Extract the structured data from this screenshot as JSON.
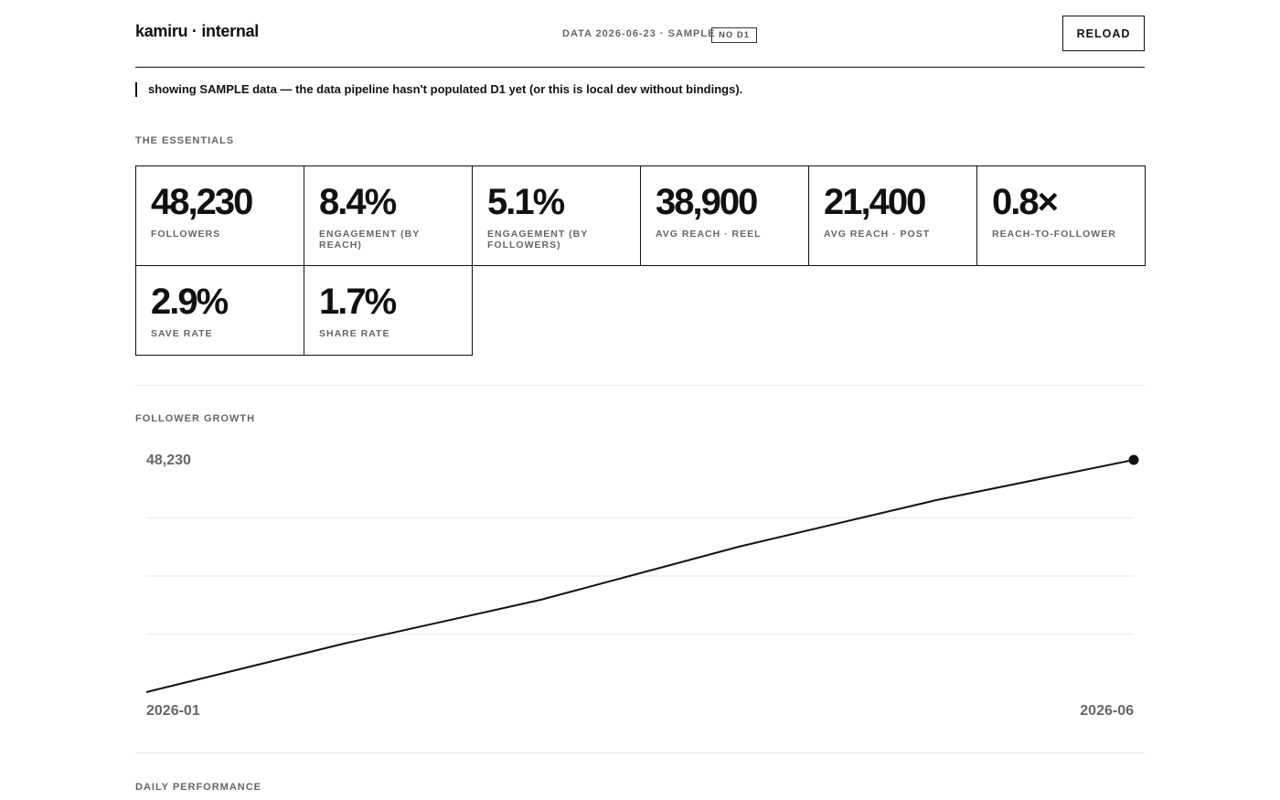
{
  "header": {
    "title": "kamiru · internal",
    "status": "DATA 2026-06-23 · SAMPLE",
    "badge": "NO D1",
    "button": "RELOAD"
  },
  "notice": "showing SAMPLE data — the data pipeline hasn't populated D1 yet (or this is local dev without bindings).",
  "essentials": {
    "heading": "THE ESSENTIALS",
    "cards": [
      {
        "value": "48,230",
        "label": "FOLLOWERS"
      },
      {
        "value": "8.4%",
        "label": "ENGAGEMENT (BY REACH)"
      },
      {
        "value": "5.1%",
        "label": "ENGAGEMENT (BY FOLLOWERS)"
      },
      {
        "value": "38,900",
        "label": "AVG REACH · REEL"
      },
      {
        "value": "21,400",
        "label": "AVG REACH · POST"
      },
      {
        "value": "0.8×",
        "label": "REACH-TO-FOLLOWER"
      },
      {
        "value": "2.9%",
        "label": "SAVE RATE"
      },
      {
        "value": "1.7%",
        "label": "SHARE RATE"
      }
    ]
  },
  "follower_growth": {
    "heading": "FOLLOWER GROWTH",
    "chart_data": {
      "type": "line",
      "categories": [
        "2026-01",
        null,
        null,
        null,
        null,
        "2026-06"
      ],
      "values": [
        42000,
        43300,
        44480,
        45900,
        47150,
        48230
      ],
      "value_labels": [
        null,
        null,
        null,
        null,
        null,
        "48,230"
      ],
      "color": "#111111",
      "ylim": [
        42000,
        48230
      ],
      "grid": true
    }
  },
  "daily_performance": {
    "heading": "DAILY PERFORMANCE"
  }
}
